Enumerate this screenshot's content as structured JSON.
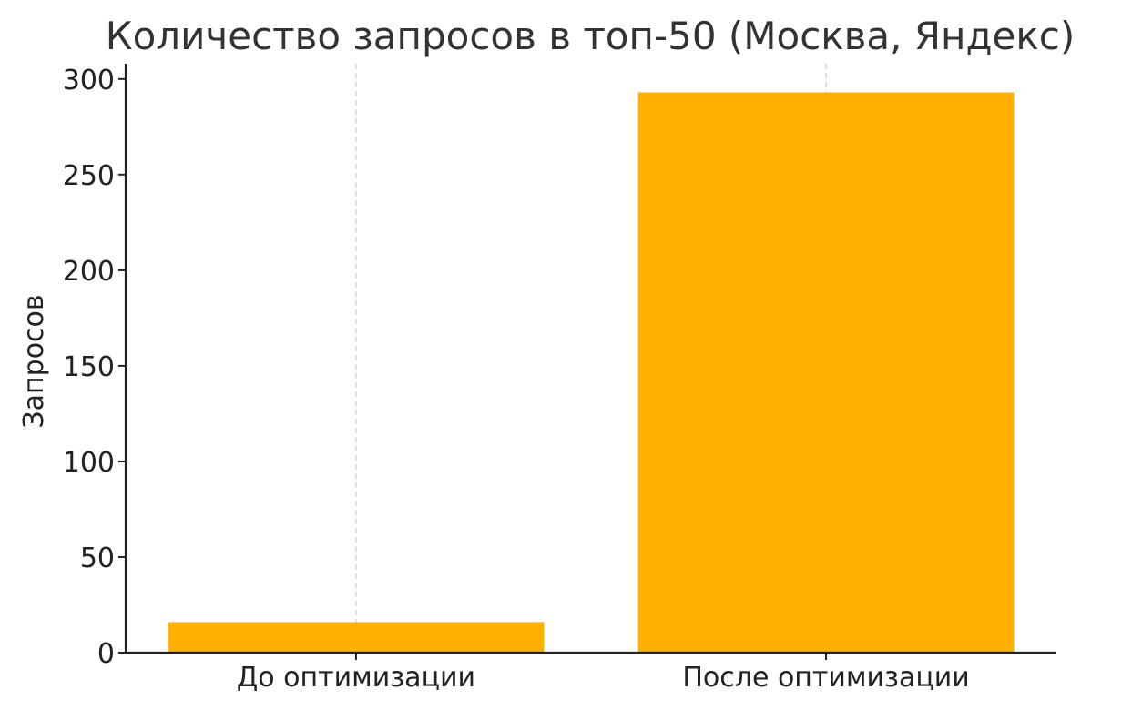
{
  "chart_data": {
    "type": "bar",
    "title": "Количество запросов в топ-50 (Москва, Яндекс)",
    "xlabel": "",
    "ylabel": "Запросов",
    "categories": [
      "До оптимизации",
      "После оптимизации"
    ],
    "values": [
      16,
      293
    ],
    "ylim": [
      0,
      308
    ],
    "yticks": [
      0,
      50,
      100,
      150,
      200,
      250,
      300
    ],
    "grid": "x-dashed",
    "bar_color": "#FFB000",
    "grid_color": "#cccccc"
  }
}
